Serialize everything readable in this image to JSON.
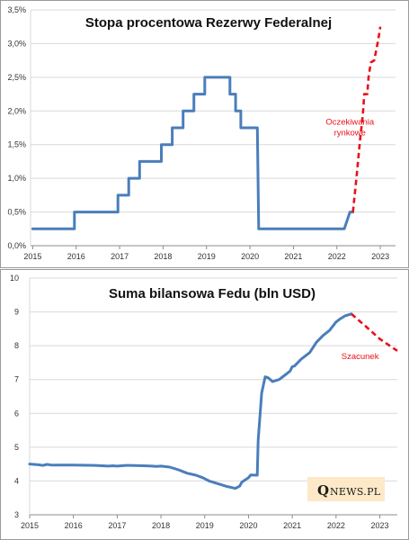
{
  "chart_data": [
    {
      "type": "line",
      "title": "Stopa procentowa Rezerwy Federalnej",
      "xlabel": "",
      "ylabel": "",
      "ylim": [
        0,
        3.5
      ],
      "xlim": [
        2014.95,
        2023.35
      ],
      "yticks": [
        "0,0%",
        "0,5%",
        "1,0%",
        "1,5%",
        "2,0%",
        "2,5%",
        "3,0%",
        "3,5%"
      ],
      "xticks": [
        "2015",
        "2016",
        "2017",
        "2018",
        "2019",
        "2020",
        "2021",
        "2022",
        "2023"
      ],
      "grid": true,
      "series": [
        {
          "role": "actual",
          "color": "#4a7ebb",
          "style": "solid",
          "points": [
            [
              2015.0,
              0.25
            ],
            [
              2015.96,
              0.25
            ],
            [
              2015.96,
              0.5
            ],
            [
              2016.96,
              0.5
            ],
            [
              2016.96,
              0.75
            ],
            [
              2017.21,
              0.75
            ],
            [
              2017.21,
              1.0
            ],
            [
              2017.46,
              1.0
            ],
            [
              2017.46,
              1.25
            ],
            [
              2017.96,
              1.25
            ],
            [
              2017.96,
              1.5
            ],
            [
              2018.21,
              1.5
            ],
            [
              2018.21,
              1.75
            ],
            [
              2018.46,
              1.75
            ],
            [
              2018.46,
              2.0
            ],
            [
              2018.71,
              2.0
            ],
            [
              2018.71,
              2.25
            ],
            [
              2018.96,
              2.25
            ],
            [
              2018.96,
              2.5
            ],
            [
              2019.54,
              2.5
            ],
            [
              2019.54,
              2.25
            ],
            [
              2019.67,
              2.25
            ],
            [
              2019.67,
              2.0
            ],
            [
              2019.79,
              2.0
            ],
            [
              2019.79,
              1.75
            ],
            [
              2020.17,
              1.75
            ],
            [
              2020.2,
              0.25
            ],
            [
              2022.17,
              0.25
            ],
            [
              2022.3,
              0.5
            ],
            [
              2022.37,
              0.5
            ]
          ]
        },
        {
          "role": "forecast",
          "label": "Oczekiwania rynkowe",
          "color": "#e8101a",
          "style": "dashed",
          "points": [
            [
              2022.37,
              0.5
            ],
            [
              2022.45,
              1.0
            ],
            [
              2022.53,
              1.55
            ],
            [
              2022.6,
              1.95
            ],
            [
              2022.63,
              2.25
            ],
            [
              2022.7,
              2.25
            ],
            [
              2022.73,
              2.5
            ],
            [
              2022.78,
              2.72
            ],
            [
              2022.86,
              2.75
            ],
            [
              2022.95,
              3.05
            ],
            [
              2023.0,
              3.25
            ]
          ]
        }
      ],
      "annotations": [
        {
          "text": [
            "Oczekiwania",
            "rynkowe"
          ],
          "x": 2022.3,
          "y": 1.8
        }
      ]
    },
    {
      "type": "line",
      "title": "Suma bilansowa  Fedu (bln USD)",
      "xlabel": "",
      "ylabel": "",
      "ylim": [
        3,
        10
      ],
      "xlim": [
        2015.0,
        2023.4
      ],
      "yticks": [
        "3",
        "4",
        "5",
        "6",
        "7",
        "8",
        "9",
        "10"
      ],
      "xticks": [
        "2015",
        "2016",
        "2017",
        "2018",
        "2019",
        "2020",
        "2021",
        "2022",
        "2023"
      ],
      "grid": true,
      "series": [
        {
          "role": "actual",
          "color": "#4a7ebb",
          "style": "solid",
          "points": [
            [
              2015.0,
              4.5
            ],
            [
              2015.2,
              4.48
            ],
            [
              2015.3,
              4.46
            ],
            [
              2015.4,
              4.49
            ],
            [
              2015.5,
              4.47
            ],
            [
              2016.0,
              4.47
            ],
            [
              2016.5,
              4.46
            ],
            [
              2016.8,
              4.44
            ],
            [
              2016.9,
              4.45
            ],
            [
              2017.0,
              4.44
            ],
            [
              2017.2,
              4.46
            ],
            [
              2017.3,
              4.46
            ],
            [
              2017.6,
              4.45
            ],
            [
              2017.8,
              4.44
            ],
            [
              2017.9,
              4.43
            ],
            [
              2018.0,
              4.44
            ],
            [
              2018.2,
              4.41
            ],
            [
              2018.4,
              4.33
            ],
            [
              2018.6,
              4.23
            ],
            [
              2018.8,
              4.17
            ],
            [
              2018.95,
              4.1
            ],
            [
              2019.1,
              4.0
            ],
            [
              2019.3,
              3.92
            ],
            [
              2019.5,
              3.84
            ],
            [
              2019.7,
              3.78
            ],
            [
              2019.8,
              3.85
            ],
            [
              2019.85,
              3.97
            ],
            [
              2020.0,
              4.1
            ],
            [
              2020.05,
              4.18
            ],
            [
              2020.2,
              4.17
            ],
            [
              2020.22,
              5.2
            ],
            [
              2020.3,
              6.6
            ],
            [
              2020.38,
              7.08
            ],
            [
              2020.45,
              7.05
            ],
            [
              2020.55,
              6.94
            ],
            [
              2020.7,
              7.0
            ],
            [
              2020.8,
              7.1
            ],
            [
              2020.95,
              7.25
            ],
            [
              2021.0,
              7.38
            ],
            [
              2021.05,
              7.4
            ],
            [
              2021.2,
              7.6
            ],
            [
              2021.4,
              7.8
            ],
            [
              2021.55,
              8.1
            ],
            [
              2021.7,
              8.3
            ],
            [
              2021.85,
              8.45
            ],
            [
              2022.0,
              8.7
            ],
            [
              2022.1,
              8.8
            ],
            [
              2022.2,
              8.88
            ],
            [
              2022.3,
              8.92
            ],
            [
              2022.35,
              8.94
            ]
          ]
        },
        {
          "role": "forecast",
          "label": "Szacunek",
          "color": "#e8101a",
          "style": "dashed",
          "points": [
            [
              2022.35,
              8.94
            ],
            [
              2022.7,
              8.55
            ],
            [
              2023.0,
              8.2
            ],
            [
              2023.4,
              7.85
            ]
          ]
        }
      ],
      "annotations": [
        {
          "text": [
            "Szacunek"
          ],
          "x": 2022.55,
          "y": 7.6
        }
      ]
    }
  ],
  "logo": {
    "text": "QNEWS.PL",
    "initial": "Q",
    "rest": "NEWS.PL"
  }
}
